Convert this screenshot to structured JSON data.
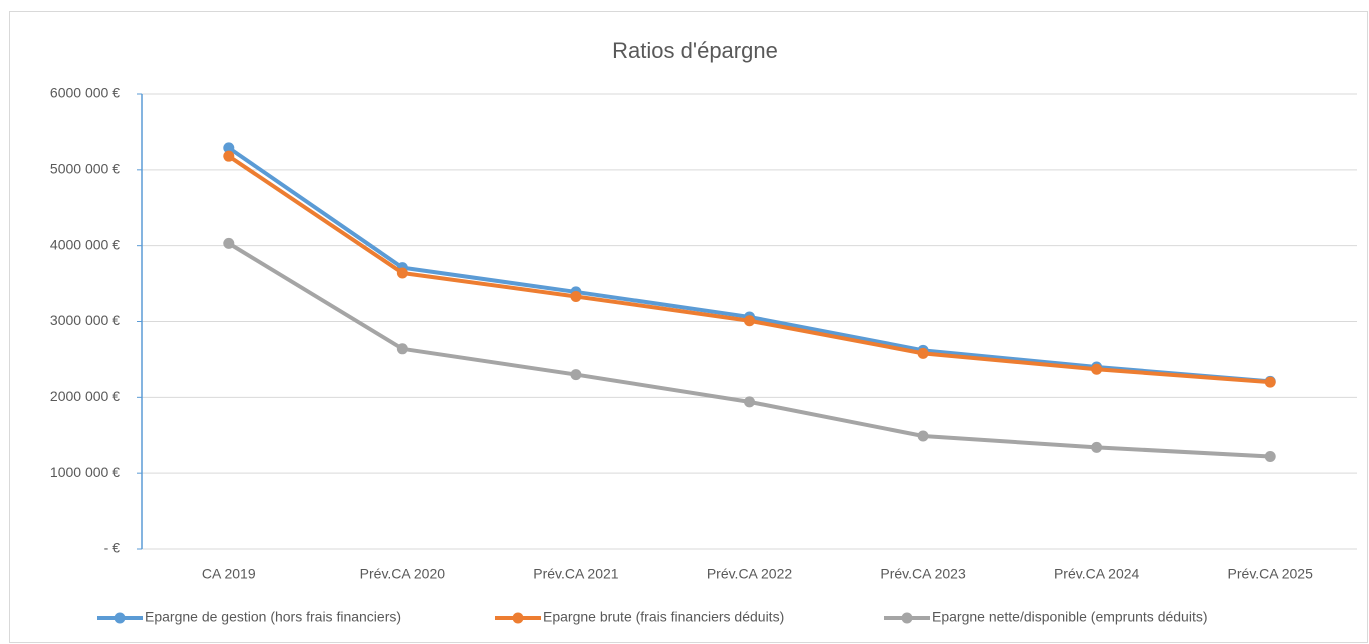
{
  "chart_data": {
    "type": "line",
    "title": "Ratios d'épargne",
    "categories": [
      "CA 2019",
      "Prév.CA 2020",
      "Prév.CA 2021",
      "Prév.CA 2022",
      "Prév.CA 2023",
      "Prév.CA 2024",
      "Prév.CA 2025"
    ],
    "series": [
      {
        "name": "Epargne de gestion (hors frais financiers)",
        "color": "#5b9bd5",
        "values": [
          5290000,
          3710000,
          3390000,
          3060000,
          2620000,
          2400000,
          2210000
        ]
      },
      {
        "name": "Epargne brute (frais financiers déduits)",
        "color": "#ed7d31",
        "values": [
          5180000,
          3640000,
          3330000,
          3010000,
          2580000,
          2370000,
          2200000
        ]
      },
      {
        "name": "Epargne nette/disponible (emprunts déduits)",
        "color": "#a5a5a5",
        "values": [
          4030000,
          2640000,
          2300000,
          1940000,
          1490000,
          1340000,
          1220000
        ]
      }
    ],
    "ylim": [
      0,
      6000000
    ],
    "yticks": [
      {
        "value": 0,
        "label": "-  €"
      },
      {
        "value": 1000000,
        "label": "1000 000 €"
      },
      {
        "value": 2000000,
        "label": "2000 000 €"
      },
      {
        "value": 3000000,
        "label": "3000 000 €"
      },
      {
        "value": 4000000,
        "label": "4000 000 €"
      },
      {
        "value": 5000000,
        "label": "5000 000 €"
      },
      {
        "value": 6000000,
        "label": "6000 000 €"
      }
    ],
    "grid": true,
    "legend": "bottom"
  }
}
